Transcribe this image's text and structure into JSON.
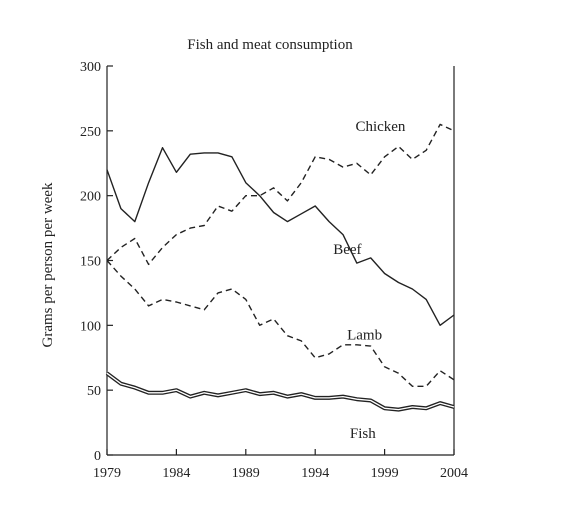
{
  "chart_data": {
    "type": "line",
    "title": "Fish and meat consumption",
    "xlabel": "",
    "ylabel": "Grams per person per week",
    "xlim": [
      1979,
      2004
    ],
    "ylim": [
      0,
      300
    ],
    "x_ticks": [
      1979,
      1984,
      1989,
      1994,
      1999,
      2004
    ],
    "y_ticks": [
      0,
      50,
      100,
      150,
      200,
      250,
      300
    ],
    "grid": false,
    "legend": "inline labels",
    "x": [
      1979,
      1980,
      1981,
      1982,
      1983,
      1984,
      1985,
      1986,
      1987,
      1988,
      1989,
      1990,
      1991,
      1992,
      1993,
      1994,
      1995,
      1996,
      1997,
      1998,
      1999,
      2000,
      2001,
      2002,
      2003,
      2004
    ],
    "series": [
      {
        "name": "Chicken",
        "style": "dashed",
        "color": "#222222",
        "values": [
          150,
          160,
          167,
          147,
          160,
          170,
          175,
          177,
          192,
          188,
          200,
          200,
          206,
          196,
          210,
          230,
          228,
          222,
          225,
          216,
          230,
          238,
          228,
          235,
          255,
          250
        ]
      },
      {
        "name": "Beef",
        "style": "solid",
        "color": "#222222",
        "values": [
          220,
          190,
          180,
          210,
          237,
          218,
          232,
          233,
          233,
          230,
          210,
          200,
          187,
          180,
          186,
          192,
          180,
          170,
          148,
          152,
          140,
          133,
          128,
          120,
          100,
          108
        ]
      },
      {
        "name": "Lamb",
        "style": "dashed",
        "color": "#222222",
        "values": [
          150,
          138,
          128,
          115,
          120,
          118,
          115,
          112,
          125,
          128,
          120,
          100,
          105,
          92,
          88,
          75,
          78,
          85,
          85,
          84,
          68,
          63,
          53,
          53,
          65,
          58
        ]
      },
      {
        "name": "Fish",
        "style": "double",
        "color": "#222222",
        "values": [
          63,
          55,
          52,
          48,
          48,
          50,
          45,
          48,
          46,
          48,
          50,
          47,
          48,
          45,
          47,
          44,
          44,
          45,
          43,
          42,
          36,
          35,
          37,
          36,
          40,
          37
        ]
      }
    ]
  }
}
